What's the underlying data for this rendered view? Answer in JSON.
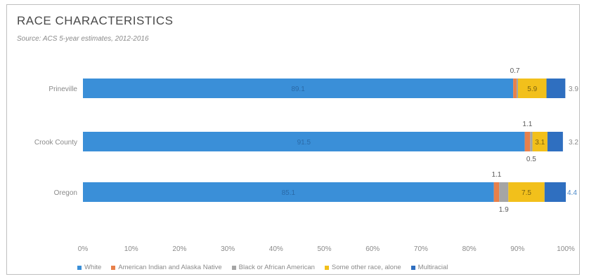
{
  "chart_data": {
    "type": "bar",
    "orientation": "horizontal",
    "stacked": true,
    "title": "RACE CHARACTERISTICS",
    "subtitle": "Source: ACS 5-year estimates, 2012-2016",
    "categories": [
      "Prineville",
      "Crook County",
      "Oregon"
    ],
    "xlim": [
      0,
      100
    ],
    "x_ticks": [
      "0%",
      "10%",
      "20%",
      "30%",
      "40%",
      "50%",
      "60%",
      "70%",
      "80%",
      "90%",
      "100%"
    ],
    "grid": false,
    "legend_position": "bottom",
    "series": [
      {
        "name": "White",
        "color": "#3a8fd8",
        "values": [
          89.1,
          91.5,
          85.1
        ],
        "labels": [
          "89.1",
          "91.5",
          "85.1"
        ]
      },
      {
        "name": "American Indian and Alaska Native",
        "color": "#e8804a",
        "values": [
          0.7,
          1.1,
          1.1
        ],
        "labels": [
          "0.7",
          "1.1",
          "1.1"
        ]
      },
      {
        "name": "Black or African American",
        "color": "#a5a5a5",
        "values": [
          0.3,
          0.5,
          1.9
        ],
        "labels": [
          "",
          "0.5",
          "1.9"
        ]
      },
      {
        "name": "Some other race, alone",
        "color": "#f2c01b",
        "values": [
          5.9,
          3.1,
          7.5
        ],
        "labels": [
          "5.9",
          "3.1",
          "7.5"
        ]
      },
      {
        "name": "Multiracial",
        "color": "#2f6fc0",
        "values": [
          3.9,
          3.2,
          4.4
        ],
        "labels": [
          "3.9",
          "3.2",
          "4.4"
        ]
      }
    ]
  }
}
